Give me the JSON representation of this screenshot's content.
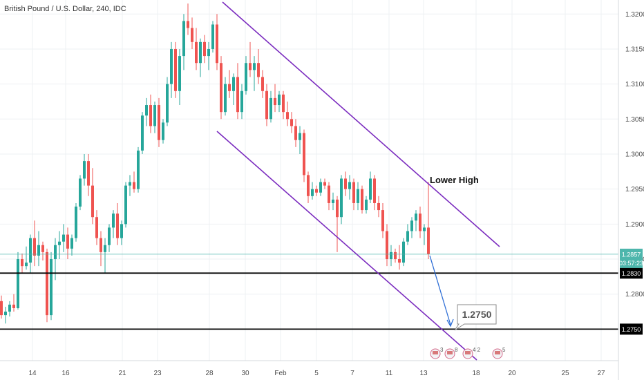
{
  "chart_title": "British Pound / U.S. Dollar, 240, IDC",
  "chart_data": {
    "type": "candlestick",
    "ylim": [
      1.2705,
      1.322
    ],
    "y_ticks": [
      "1.3200",
      "1.3150",
      "1.3100",
      "1.3050",
      "1.3000",
      "1.2950",
      "1.2900",
      "1.2850",
      "1.2800"
    ],
    "x_ticks": [
      "14",
      "16",
      "21",
      "23",
      "28",
      "30",
      "Feb",
      "5",
      "7",
      "11",
      "13",
      "18",
      "20",
      "25",
      "27"
    ],
    "candles": [
      [
        1.279,
        1.2798,
        1.2765,
        1.277
      ],
      [
        1.277,
        1.2782,
        1.2758,
        1.2775
      ],
      [
        1.2775,
        1.279,
        1.2768,
        1.2785
      ],
      [
        1.2785,
        1.28,
        1.2775,
        1.278
      ],
      [
        1.278,
        1.286,
        1.2778,
        1.285
      ],
      [
        1.285,
        1.2858,
        1.283,
        1.284
      ],
      [
        1.284,
        1.2868,
        1.2835,
        1.2845
      ],
      [
        1.2845,
        1.2885,
        1.283,
        1.288
      ],
      [
        1.288,
        1.2905,
        1.284,
        1.2855
      ],
      [
        1.2855,
        1.289,
        1.284,
        1.287
      ],
      [
        1.287,
        1.2875,
        1.2848,
        1.286
      ],
      [
        1.286,
        1.2865,
        1.276,
        1.277
      ],
      [
        1.277,
        1.286,
        1.2763,
        1.285
      ],
      [
        1.285,
        1.288,
        1.282,
        1.287
      ],
      [
        1.287,
        1.289,
        1.285,
        1.2875
      ],
      [
        1.2875,
        1.29,
        1.286,
        1.2885
      ],
      [
        1.2885,
        1.2895,
        1.285,
        1.2865
      ],
      [
        1.2865,
        1.2885,
        1.2855,
        1.288
      ],
      [
        1.288,
        1.293,
        1.2875,
        1.2925
      ],
      [
        1.2925,
        1.297,
        1.292,
        1.2965
      ],
      [
        1.2965,
        1.3,
        1.2955,
        1.299
      ],
      [
        1.299,
        1.3,
        1.294,
        1.2955
      ],
      [
        1.2955,
        1.298,
        1.29,
        1.291
      ],
      [
        1.291,
        1.292,
        1.287,
        1.288
      ],
      [
        1.288,
        1.289,
        1.284,
        1.286
      ],
      [
        1.286,
        1.288,
        1.283,
        1.287
      ],
      [
        1.287,
        1.29,
        1.286,
        1.2895
      ],
      [
        1.2895,
        1.292,
        1.288,
        1.2915
      ],
      [
        1.2915,
        1.293,
        1.287,
        1.288
      ],
      [
        1.288,
        1.2905,
        1.287,
        1.29
      ],
      [
        1.29,
        1.296,
        1.2895,
        1.2955
      ],
      [
        1.2955,
        1.297,
        1.294,
        1.296
      ],
      [
        1.296,
        1.2975,
        1.2945,
        1.295
      ],
      [
        1.295,
        1.301,
        1.2945,
        1.3005
      ],
      [
        1.3005,
        1.306,
        1.3,
        1.3055
      ],
      [
        1.3055,
        1.308,
        1.304,
        1.307
      ],
      [
        1.307,
        1.3085,
        1.303,
        1.304
      ],
      [
        1.304,
        1.3075,
        1.303,
        1.307
      ],
      [
        1.307,
        1.308,
        1.301,
        1.302
      ],
      [
        1.302,
        1.305,
        1.3015,
        1.3045
      ],
      [
        1.3045,
        1.311,
        1.304,
        1.31
      ],
      [
        1.31,
        1.316,
        1.308,
        1.315
      ],
      [
        1.315,
        1.316,
        1.308,
        1.309
      ],
      [
        1.309,
        1.315,
        1.307,
        1.314
      ],
      [
        1.314,
        1.32,
        1.312,
        1.319
      ],
      [
        1.319,
        1.3215,
        1.317,
        1.318
      ],
      [
        1.318,
        1.3195,
        1.315,
        1.316
      ],
      [
        1.316,
        1.318,
        1.312,
        1.313
      ],
      [
        1.313,
        1.3165,
        1.311,
        1.316
      ],
      [
        1.316,
        1.317,
        1.313,
        1.314
      ],
      [
        1.314,
        1.316,
        1.312,
        1.315
      ],
      [
        1.315,
        1.319,
        1.3145,
        1.3185
      ],
      [
        1.3185,
        1.32,
        1.312,
        1.313
      ],
      [
        1.313,
        1.314,
        1.305,
        1.306
      ],
      [
        1.306,
        1.311,
        1.3055,
        1.31
      ],
      [
        1.31,
        1.312,
        1.308,
        1.309
      ],
      [
        1.309,
        1.3115,
        1.307,
        1.311
      ],
      [
        1.311,
        1.313,
        1.305,
        1.306
      ],
      [
        1.306,
        1.31,
        1.305,
        1.309
      ],
      [
        1.309,
        1.314,
        1.3085,
        1.313
      ],
      [
        1.313,
        1.316,
        1.311,
        1.312
      ],
      [
        1.312,
        1.314,
        1.309,
        1.313
      ],
      [
        1.313,
        1.315,
        1.31,
        1.311
      ],
      [
        1.311,
        1.312,
        1.308,
        1.309
      ],
      [
        1.309,
        1.31,
        1.304,
        1.305
      ],
      [
        1.305,
        1.309,
        1.3045,
        1.308
      ],
      [
        1.308,
        1.31,
        1.306,
        1.307
      ],
      [
        1.307,
        1.309,
        1.306,
        1.3085
      ],
      [
        1.3085,
        1.309,
        1.305,
        1.306
      ],
      [
        1.306,
        1.3075,
        1.304,
        1.305
      ],
      [
        1.305,
        1.306,
        1.303,
        1.304
      ],
      [
        1.304,
        1.305,
        1.301,
        1.302
      ],
      [
        1.302,
        1.304,
        1.3,
        1.303
      ],
      [
        1.303,
        1.3035,
        1.296,
        1.297
      ],
      [
        1.297,
        1.2975,
        1.293,
        1.294
      ],
      [
        1.294,
        1.296,
        1.2935,
        1.295
      ],
      [
        1.295,
        1.2955,
        1.294,
        1.2945
      ],
      [
        1.2945,
        1.2965,
        1.294,
        1.296
      ],
      [
        1.296,
        1.2965,
        1.295,
        1.2955
      ],
      [
        1.2955,
        1.296,
        1.292,
        1.293
      ],
      [
        1.293,
        1.2945,
        1.292,
        1.2935
      ],
      [
        1.2935,
        1.294,
        1.286,
        1.291
      ],
      [
        1.291,
        1.297,
        1.29,
        1.2965
      ],
      [
        1.2965,
        1.2975,
        1.294,
        1.295
      ],
      [
        1.295,
        1.297,
        1.2935,
        1.296
      ],
      [
        1.296,
        1.2965,
        1.292,
        1.293
      ],
      [
        1.293,
        1.296,
        1.292,
        1.295
      ],
      [
        1.295,
        1.2955,
        1.2915,
        1.292
      ],
      [
        1.292,
        1.294,
        1.2915,
        1.2935
      ],
      [
        1.2935,
        1.2975,
        1.293,
        1.2965
      ],
      [
        1.2965,
        1.297,
        1.292,
        1.293
      ],
      [
        1.293,
        1.294,
        1.291,
        1.292
      ],
      [
        1.292,
        1.293,
        1.288,
        1.289
      ],
      [
        1.289,
        1.29,
        1.284,
        1.285
      ],
      [
        1.285,
        1.287,
        1.284,
        1.286
      ],
      [
        1.286,
        1.2865,
        1.2845,
        1.285
      ],
      [
        1.285,
        1.287,
        1.2835,
        1.2845
      ],
      [
        1.2845,
        1.288,
        1.284,
        1.2875
      ],
      [
        1.2875,
        1.29,
        1.287,
        1.289
      ],
      [
        1.289,
        1.291,
        1.288,
        1.2905
      ],
      [
        1.2905,
        1.292,
        1.289,
        1.2915
      ],
      [
        1.2915,
        1.2925,
        1.288,
        1.289
      ],
      [
        1.289,
        1.29,
        1.287,
        1.2895
      ],
      [
        1.2895,
        1.296,
        1.285,
        1.2857
      ]
    ],
    "horizontal_levels": [
      1.283,
      1.275
    ],
    "current_price": 1.2857,
    "countdown": "03:57:23",
    "annotations": {
      "lower_high": "Lower High",
      "target": "1.2750"
    },
    "events": [
      "3",
      "8",
      "4",
      "2",
      "5"
    ],
    "colors": {
      "up": "#26a69a",
      "down": "#ef5350",
      "channel": "#7b2cbf",
      "level": "#000000",
      "price_line": "#4db6ac",
      "arrow": "#2f6fd6",
      "grid": "#eef0f3"
    }
  }
}
